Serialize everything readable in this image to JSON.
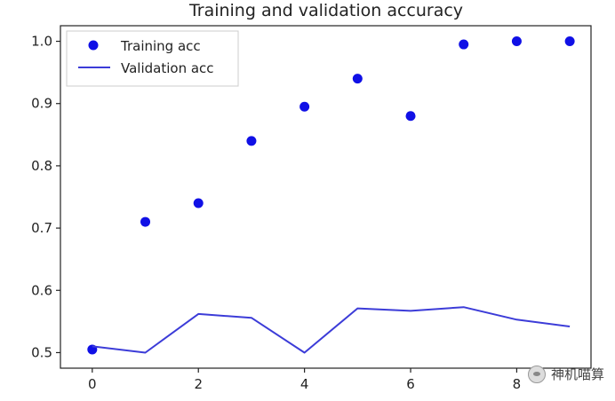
{
  "chart_data": {
    "type": "line",
    "title": "Training and validation accuracy",
    "xlabel": "",
    "ylabel": "",
    "xlim": [
      -0.6,
      9.4
    ],
    "ylim": [
      0.475,
      1.025
    ],
    "x_ticks": [
      0,
      2,
      4,
      6,
      8
    ],
    "y_ticks": [
      0.5,
      0.6,
      0.7,
      0.8,
      0.9,
      1.0
    ],
    "y_tick_labels": [
      "0.5",
      "0.6",
      "0.7",
      "0.8",
      "0.9",
      "1.0"
    ],
    "legend_position": "top-left",
    "grid": false,
    "series": [
      {
        "name": "Training acc",
        "style": "scatter",
        "color": "#1010e6",
        "x": [
          0,
          1,
          2,
          3,
          4,
          5,
          6,
          7,
          8,
          9
        ],
        "y": [
          0.505,
          0.71,
          0.74,
          0.84,
          0.895,
          0.94,
          0.88,
          0.995,
          1.0,
          1.0
        ]
      },
      {
        "name": "Validation acc",
        "style": "line",
        "color": "#3c3cd8",
        "x": [
          0,
          1,
          2,
          3,
          4,
          5,
          6,
          7,
          8,
          9
        ],
        "y": [
          0.51,
          0.5,
          0.562,
          0.556,
          0.5,
          0.571,
          0.567,
          0.573,
          0.553,
          0.542
        ]
      }
    ]
  },
  "watermark": {
    "text": "神机喵算",
    "icon": "wechat-icon"
  }
}
